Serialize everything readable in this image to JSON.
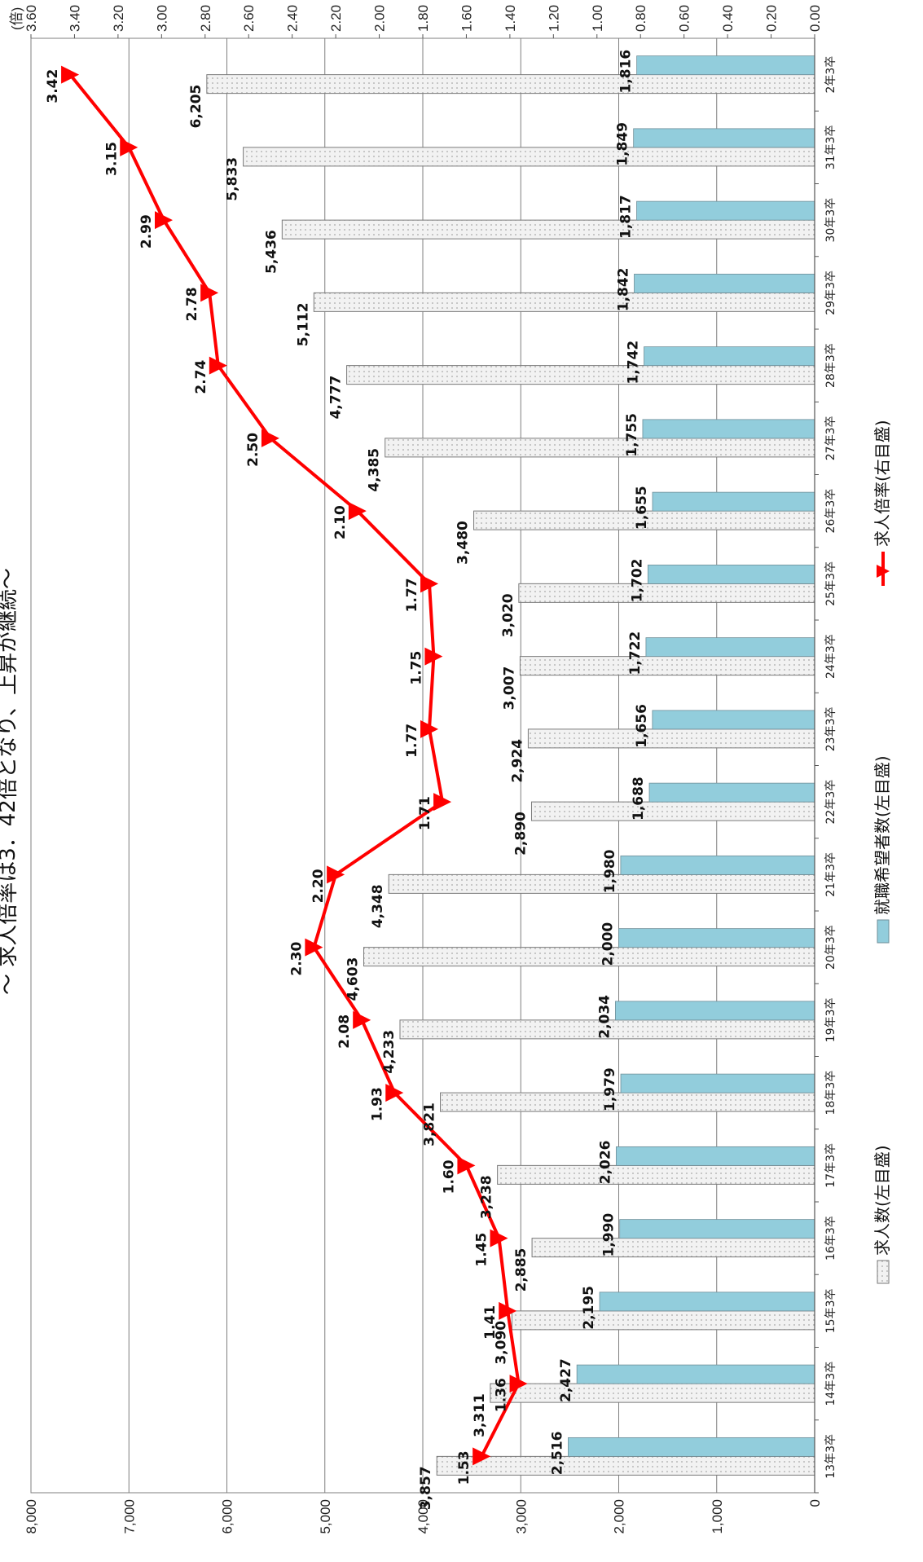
{
  "chart_data": {
    "type": "bar",
    "title": "～ 求人倍率は3．42倍となり、上昇が継続～",
    "categories": [
      "13年3卒",
      "14年3卒",
      "15年3卒",
      "16年3卒",
      "17年3卒",
      "18年3卒",
      "19年3卒",
      "20年3卒",
      "21年3卒",
      "22年3卒",
      "23年3卒",
      "24年3卒",
      "25年3卒",
      "26年3卒",
      "27年3卒",
      "28年3卒",
      "29年3卒",
      "30年3卒",
      "31年3卒",
      "2年3卒"
    ],
    "series": [
      {
        "name": "求人数(左目盛)",
        "kind": "bar",
        "axis": "left",
        "values": [
          3857,
          3311,
          3090,
          2885,
          3238,
          3821,
          4233,
          4603,
          4348,
          2890,
          2924,
          3007,
          3020,
          3480,
          4385,
          4777,
          5112,
          5436,
          5833,
          6205
        ],
        "labels": [
          "3,857",
          "3,311",
          "3,090",
          "2,885",
          "3,238",
          "3,821",
          "4,233",
          "4,603",
          "4,348",
          "2,890",
          "2,924",
          "3,007",
          "3,020",
          "3,480",
          "4,385",
          "4,777",
          "5,112",
          "5,436",
          "5,833",
          "6,205"
        ],
        "color": "#f2f2f2"
      },
      {
        "name": "就職希望者数(左目盛)",
        "kind": "bar",
        "axis": "left",
        "values": [
          2516,
          2427,
          2195,
          1990,
          2026,
          1979,
          2034,
          2000,
          1980,
          1688,
          1656,
          1722,
          1702,
          1655,
          1755,
          1742,
          1842,
          1817,
          1849,
          1816
        ],
        "labels": [
          "2,516",
          "2,427",
          "2,195",
          "1,990",
          "2,026",
          "1,979",
          "2,034",
          "2,000",
          "1,980",
          "1,688",
          "1,656",
          "1,722",
          "1,702",
          "1,655",
          "1,755",
          "1,742",
          "1,842",
          "1,817",
          "1,849",
          "1,816"
        ],
        "color": "#92cddc"
      },
      {
        "name": "求人倍率(右目盛)",
        "kind": "line",
        "axis": "right",
        "values": [
          1.53,
          1.36,
          1.41,
          1.45,
          1.6,
          1.93,
          2.08,
          2.3,
          2.2,
          1.71,
          1.77,
          1.75,
          1.77,
          2.1,
          2.5,
          2.74,
          2.78,
          2.99,
          3.15,
          3.42
        ],
        "labels": [
          "1.53",
          "1.36",
          "1.41",
          "1.45",
          "1.60",
          "1.93",
          "2.08",
          "2.30",
          "2.20",
          "1.71",
          "1.77",
          "1.75",
          "1.77",
          "2.10",
          "2.50",
          "2.74",
          "2.78",
          "2.99",
          "3.15",
          "3.42"
        ],
        "color": "#ff0000"
      }
    ],
    "left_axis": {
      "min": 0,
      "max": 8000,
      "ticks": [
        "0",
        "1,000",
        "2,000",
        "3,000",
        "4,000",
        "5,000",
        "6,000",
        "7,000",
        "8,000"
      ]
    },
    "right_axis": {
      "min": 0,
      "max": 3.6,
      "ticks": [
        "0.00",
        "0.20",
        "0.40",
        "0.60",
        "0.80",
        "1.00",
        "1.20",
        "1.40",
        "1.60",
        "1.80",
        "2.00",
        "2.20",
        "2.40",
        "2.60",
        "2.80",
        "3.00",
        "3.20",
        "3.40",
        "3.60"
      ],
      "unit": "(倍)"
    },
    "grid": true,
    "legend_position": "bottom",
    "orientation": "rotated 90° counter-clockwise"
  }
}
